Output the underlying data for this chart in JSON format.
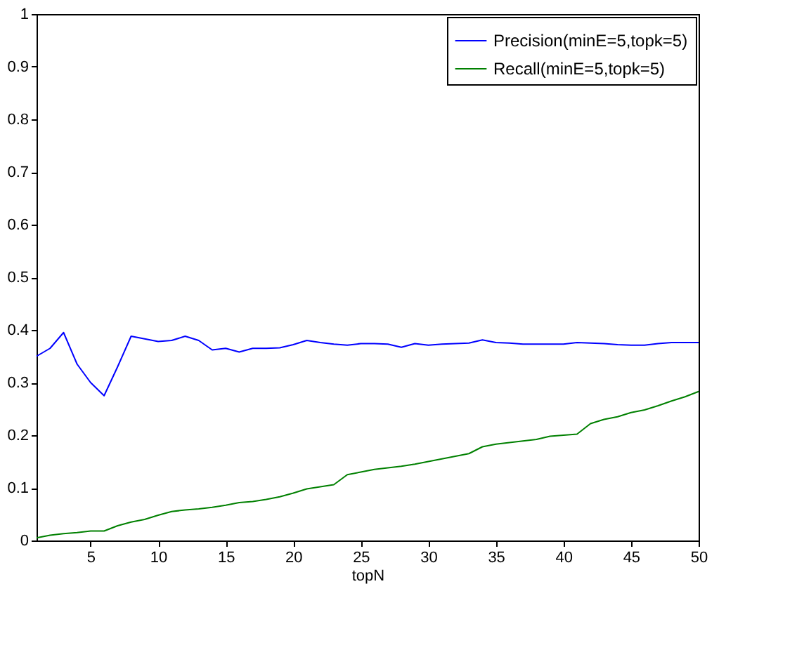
{
  "chart_data": {
    "type": "line",
    "xlabel": "topN",
    "x": [
      1,
      2,
      3,
      4,
      5,
      6,
      7,
      8,
      9,
      10,
      11,
      12,
      13,
      14,
      15,
      16,
      17,
      18,
      19,
      20,
      21,
      22,
      23,
      24,
      25,
      26,
      27,
      28,
      29,
      30,
      31,
      32,
      33,
      34,
      35,
      36,
      37,
      38,
      39,
      40,
      41,
      42,
      43,
      44,
      45,
      46,
      47,
      48,
      49,
      50
    ],
    "series": [
      {
        "name": "Precision(minE=5,topk=5)",
        "color": "#0000ff",
        "values": [
          0.35,
          0.365,
          0.395,
          0.335,
          0.3,
          0.275,
          0.33,
          0.388,
          0.383,
          0.378,
          0.38,
          0.388,
          0.38,
          0.362,
          0.365,
          0.358,
          0.365,
          0.365,
          0.366,
          0.372,
          0.38,
          0.376,
          0.373,
          0.371,
          0.374,
          0.374,
          0.373,
          0.367,
          0.374,
          0.371,
          0.373,
          0.374,
          0.375,
          0.381,
          0.376,
          0.375,
          0.373,
          0.373,
          0.373,
          0.373,
          0.376,
          0.375,
          0.374,
          0.372,
          0.371,
          0.371,
          0.374,
          0.376,
          0.376,
          0.376
        ]
      },
      {
        "name": "Recall(minE=5,topk=5)",
        "color": "#008000",
        "values": [
          0.005,
          0.01,
          0.013,
          0.015,
          0.018,
          0.018,
          0.028,
          0.035,
          0.04,
          0.048,
          0.055,
          0.058,
          0.06,
          0.063,
          0.067,
          0.072,
          0.074,
          0.078,
          0.083,
          0.09,
          0.098,
          0.102,
          0.106,
          0.125,
          0.13,
          0.135,
          0.138,
          0.141,
          0.145,
          0.15,
          0.155,
          0.16,
          0.165,
          0.178,
          0.183,
          0.186,
          0.189,
          0.192,
          0.198,
          0.2,
          0.202,
          0.222,
          0.23,
          0.235,
          0.243,
          0.248,
          0.256,
          0.265,
          0.273,
          0.283
        ]
      }
    ],
    "xlim": [
      1,
      50
    ],
    "xticks": [
      5,
      10,
      15,
      20,
      25,
      30,
      35,
      40,
      45,
      50
    ],
    "ylim": [
      0,
      1
    ],
    "yticks": [
      0,
      0.1,
      0.2,
      0.3,
      0.4,
      0.5,
      0.6,
      0.7,
      0.8,
      0.9,
      1
    ],
    "legend": "top right",
    "grid": false,
    "marker": "none",
    "line_style": "solid"
  }
}
